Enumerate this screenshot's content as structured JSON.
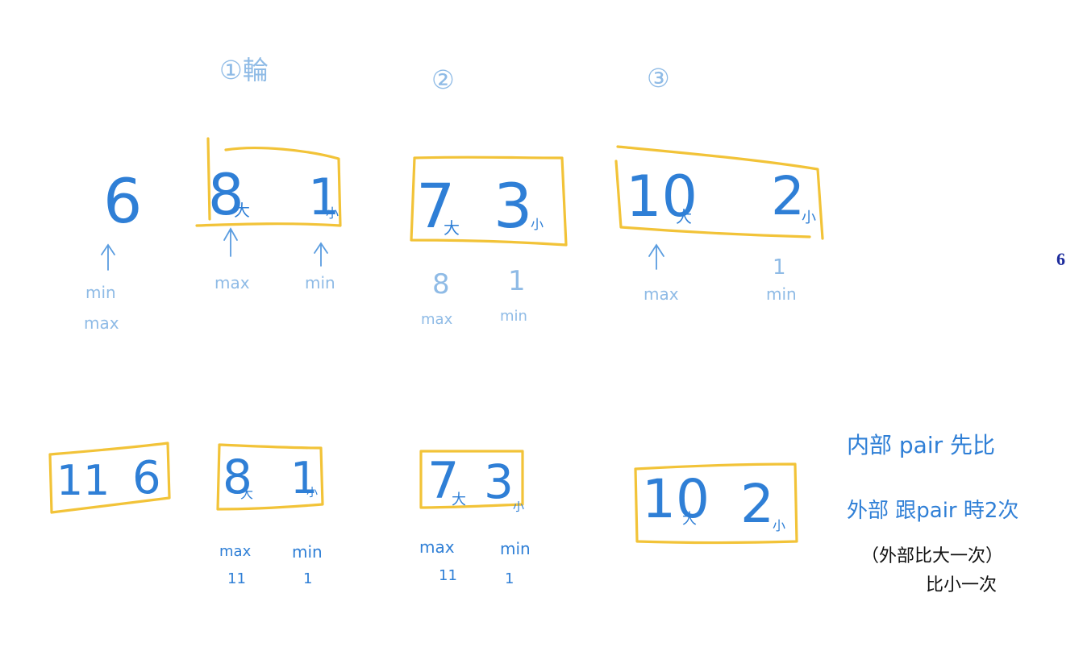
{
  "page_number": "6",
  "round_labels": [
    "①輪",
    "②",
    "③"
  ],
  "top_row": {
    "single": {
      "value": "6",
      "labels": [
        "min",
        "max"
      ]
    },
    "pairs": [
      {
        "big": "8",
        "big_mark": "大",
        "small": "1",
        "small_mark": "小"
      },
      {
        "big": "7",
        "big_mark": "大",
        "small": "3",
        "small_mark": "小"
      },
      {
        "big": "10",
        "big_mark": "大",
        "small": "2",
        "small_mark": "小"
      }
    ],
    "under_labels": {
      "pair1_max": "max",
      "pair1_min": "min",
      "pair2_max_value": "8",
      "pair2_max": "max",
      "pair2_min_value": "1",
      "pair2_min": "min",
      "pair3_max": "max",
      "pair3_min_value": "1",
      "pair3_min": "min"
    }
  },
  "bottom_row": {
    "first_box": {
      "left": "11",
      "right": "6"
    },
    "pairs": [
      {
        "big": "8",
        "big_mark": "大",
        "small": "1",
        "small_mark": "小"
      },
      {
        "big": "7",
        "big_mark": "大",
        "small": "3",
        "small_mark": "小"
      },
      {
        "big": "10",
        "big_mark": "大",
        "small": "2",
        "small_mark": "小"
      }
    ],
    "under_labels": {
      "pair1_max": "max",
      "pair1_max_value": "11",
      "pair1_min": "min",
      "pair1_min_value": "1",
      "pair2_max": "max",
      "pair2_max_value": "11",
      "pair2_min": "min",
      "pair2_min_value": "1"
    }
  },
  "notes": {
    "line1": "内部 pair 先比",
    "line2": "外部 跟pair 時2次",
    "typed_line1": "（外部比大一次）",
    "typed_line2": "比小一次"
  },
  "colors": {
    "ink_blue": "#2f7fd6",
    "ink_faint": "#8fbbe6",
    "highlight": "#f2c338"
  }
}
